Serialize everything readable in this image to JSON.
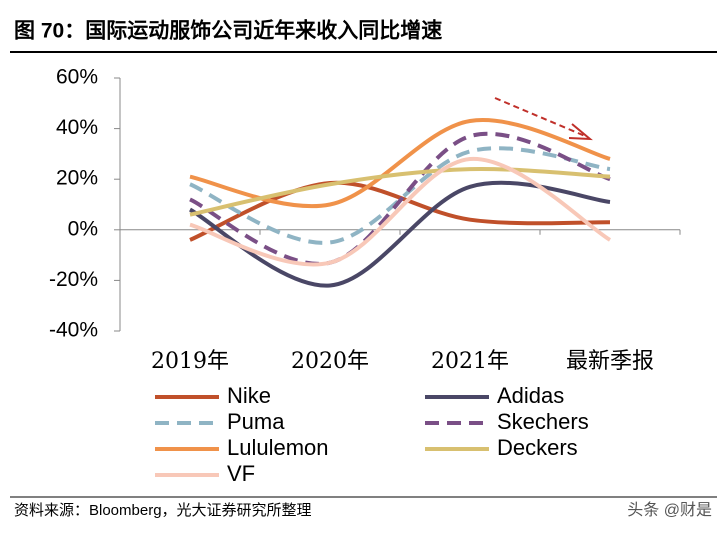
{
  "chart_data": {
    "type": "line",
    "title": "图 70：国际运动服饰公司近年来收入同比增速",
    "source": "资料来源：Bloomberg，光大证券研究所整理",
    "watermark": "头条 @财是",
    "categories": [
      "2019年",
      "2020年",
      "2021年",
      "最新季报"
    ],
    "ylim": [
      -40,
      60
    ],
    "yticks": [
      {
        "value": -40,
        "label": "-40%"
      },
      {
        "value": -20,
        "label": "-20%"
      },
      {
        "value": 0,
        "label": "0%"
      },
      {
        "value": 20,
        "label": "20%"
      },
      {
        "value": 40,
        "label": "40%"
      },
      {
        "value": 60,
        "label": "60%"
      }
    ],
    "smooth": true,
    "series": [
      {
        "name": "Nike",
        "color": "#c0502a",
        "dash": false,
        "values": [
          -4,
          18.5,
          4,
          3
        ]
      },
      {
        "name": "Adidas",
        "color": "#4a4766",
        "dash": false,
        "values": [
          8,
          -22,
          17,
          11
        ]
      },
      {
        "name": "Puma",
        "color": "#8fb4c4",
        "dash": true,
        "values": [
          18,
          -5,
          31,
          24
        ]
      },
      {
        "name": "Skechers",
        "color": "#7a4f86",
        "dash": true,
        "values": [
          12,
          -13,
          37,
          20
        ]
      },
      {
        "name": "Lululemon",
        "color": "#f0924a",
        "dash": false,
        "values": [
          21,
          10,
          43,
          28
        ]
      },
      {
        "name": "Deckers",
        "color": "#d8c070",
        "dash": false,
        "values": [
          6,
          18,
          24,
          21
        ]
      },
      {
        "name": "VF",
        "color": "#f8c8b8",
        "dash": false,
        "values": [
          2,
          -13,
          28,
          -4
        ]
      }
    ]
  }
}
